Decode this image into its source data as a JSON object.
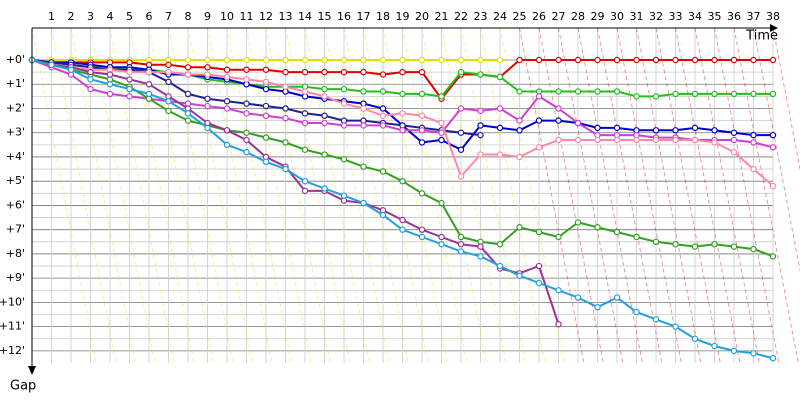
{
  "chart_data": {
    "type": "line",
    "x_title": "Time",
    "y_title": "Gap",
    "x": [
      0,
      1,
      2,
      3,
      4,
      5,
      6,
      7,
      8,
      9,
      10,
      11,
      12,
      13,
      14,
      15,
      16,
      17,
      18,
      19,
      20,
      21,
      22,
      23,
      24,
      25,
      26,
      27,
      28,
      29,
      30,
      31,
      32,
      33,
      34,
      35,
      36,
      37,
      38
    ],
    "xlim": [
      0,
      38
    ],
    "xticks": [
      1,
      2,
      3,
      4,
      5,
      6,
      7,
      8,
      9,
      10,
      11,
      12,
      13,
      14,
      15,
      16,
      17,
      18,
      19,
      20,
      21,
      22,
      23,
      24,
      25,
      26,
      27,
      28,
      29,
      30,
      31,
      32,
      33,
      34,
      35,
      36,
      37,
      38
    ],
    "ylim": [
      0,
      12.5
    ],
    "yticks": [
      {
        "value": 0,
        "label": "+0'"
      },
      {
        "value": 1,
        "label": "+1'"
      },
      {
        "value": 2,
        "label": "+2'"
      },
      {
        "value": 3,
        "label": "+3'"
      },
      {
        "value": 4,
        "label": "+4'"
      },
      {
        "value": 5,
        "label": "+5'"
      },
      {
        "value": 6,
        "label": "+6'"
      },
      {
        "value": 7,
        "label": "+7'"
      },
      {
        "value": 8,
        "label": "+8'"
      },
      {
        "value": 9,
        "label": "+9'"
      },
      {
        "value": 10,
        "label": "+10'"
      },
      {
        "value": 11,
        "label": "+11'"
      },
      {
        "value": 12,
        "label": "+12'"
      }
    ],
    "grid": true,
    "series": [
      {
        "color": "#e0e000",
        "values": [
          0,
          0,
          0,
          0,
          0,
          0,
          0,
          0,
          0,
          0,
          0,
          0,
          0,
          0,
          0,
          0,
          0,
          0,
          0,
          0,
          0,
          0,
          0,
          0,
          0,
          null,
          null,
          null,
          null,
          null,
          null,
          null,
          null,
          null,
          null,
          null,
          null,
          null,
          null
        ]
      },
      {
        "color": "#e00000",
        "values": [
          0,
          0.1,
          0.1,
          0.1,
          0.1,
          0.1,
          0.2,
          0.2,
          0.3,
          0.3,
          0.4,
          0.4,
          0.4,
          0.5,
          0.5,
          0.5,
          0.5,
          0.5,
          0.6,
          0.5,
          0.5,
          1.6,
          0.6,
          0.6,
          0.7,
          0,
          0,
          0,
          0,
          0,
          0,
          0,
          0,
          0,
          0,
          0,
          0,
          0,
          0
        ]
      },
      {
        "color": "#20c020",
        "values": [
          0,
          0.1,
          0.2,
          0.3,
          0.3,
          0.4,
          0.4,
          0.5,
          0.6,
          0.8,
          0.9,
          1.0,
          1.1,
          1.1,
          1.1,
          1.2,
          1.2,
          1.3,
          1.3,
          1.4,
          1.4,
          1.5,
          0.5,
          0.6,
          0.7,
          1.3,
          1.3,
          1.3,
          1.3,
          1.3,
          1.3,
          1.5,
          1.5,
          1.4,
          1.4,
          1.4,
          1.4,
          1.4,
          1.4
        ]
      },
      {
        "color": "#0000cc",
        "values": [
          0,
          0.1,
          0.1,
          0.2,
          0.3,
          0.3,
          0.4,
          0.6,
          0.6,
          0.7,
          0.8,
          1.0,
          1.2,
          1.3,
          1.5,
          1.6,
          1.7,
          1.8,
          2.0,
          2.7,
          3.4,
          3.3,
          3.7,
          2.7,
          2.8,
          2.9,
          2.5,
          2.5,
          2.6,
          2.8,
          2.8,
          2.9,
          2.9,
          2.9,
          2.8,
          2.9,
          3.0,
          3.1,
          3.1
        ]
      },
      {
        "color": "#202090",
        "values": [
          0,
          0.1,
          0.2,
          0.3,
          0.4,
          0.4,
          0.5,
          0.9,
          1.4,
          1.6,
          1.7,
          1.8,
          1.9,
          2.0,
          2.2,
          2.3,
          2.5,
          2.5,
          2.6,
          2.7,
          2.8,
          2.9,
          3.0,
          3.1,
          null,
          null,
          null,
          null,
          null,
          null,
          null,
          null,
          null,
          null,
          null,
          null,
          null,
          null,
          null
        ]
      },
      {
        "color": "#d040d0",
        "values": [
          0,
          0.3,
          0.6,
          1.2,
          1.4,
          1.5,
          1.6,
          1.7,
          1.8,
          1.9,
          2.0,
          2.2,
          2.3,
          2.4,
          2.6,
          2.6,
          2.7,
          2.7,
          2.7,
          2.9,
          2.9,
          3.0,
          2.0,
          2.1,
          2.0,
          2.5,
          1.5,
          2.0,
          2.6,
          3.1,
          3.1,
          3.1,
          3.2,
          3.2,
          3.3,
          3.3,
          3.3,
          3.4,
          3.6
        ]
      },
      {
        "color": "#ff88aa",
        "values": [
          0,
          0.2,
          0.3,
          0.4,
          0.4,
          0.5,
          0.5,
          0.5,
          0.6,
          0.6,
          0.7,
          0.8,
          0.9,
          1.1,
          1.3,
          1.5,
          1.8,
          2.0,
          2.3,
          2.2,
          2.3,
          2.6,
          4.8,
          3.9,
          3.9,
          4.0,
          3.6,
          3.3,
          3.3,
          3.3,
          3.3,
          3.3,
          3.3,
          3.3,
          3.3,
          3.4,
          3.8,
          4.5,
          5.2
        ]
      },
      {
        "color": "#33a022",
        "values": [
          0,
          0.2,
          0.4,
          0.6,
          0.8,
          1.1,
          1.6,
          2.1,
          2.5,
          2.7,
          2.9,
          3.0,
          3.2,
          3.4,
          3.7,
          3.9,
          4.1,
          4.4,
          4.6,
          5.0,
          5.5,
          5.9,
          7.3,
          7.5,
          7.6,
          6.9,
          7.1,
          7.3,
          6.7,
          6.9,
          7.1,
          7.3,
          7.5,
          7.6,
          7.7,
          7.6,
          7.7,
          7.8,
          8.1
        ]
      },
      {
        "color": "#993399",
        "values": [
          0,
          0.2,
          0.3,
          0.5,
          0.6,
          0.8,
          1.0,
          1.5,
          2.0,
          2.6,
          2.9,
          3.3,
          4.0,
          4.4,
          5.4,
          5.4,
          5.8,
          5.9,
          6.2,
          6.6,
          7.0,
          7.3,
          7.6,
          7.7,
          8.6,
          8.8,
          8.5,
          10.9,
          null,
          null,
          null,
          null,
          null,
          null,
          null,
          null,
          null,
          null,
          null
        ]
      },
      {
        "color": "#22a0e0",
        "values": [
          0,
          0.2,
          0.4,
          0.8,
          1.0,
          1.2,
          1.4,
          1.7,
          2.2,
          2.8,
          3.5,
          3.8,
          4.2,
          4.5,
          5.0,
          5.3,
          5.6,
          5.9,
          6.4,
          7.0,
          7.3,
          7.6,
          7.9,
          8.1,
          8.5,
          8.9,
          9.2,
          9.5,
          9.8,
          10.2,
          9.8,
          10.4,
          10.7,
          11.0,
          11.5,
          11.8,
          12.0,
          12.1,
          12.3
        ]
      }
    ]
  }
}
